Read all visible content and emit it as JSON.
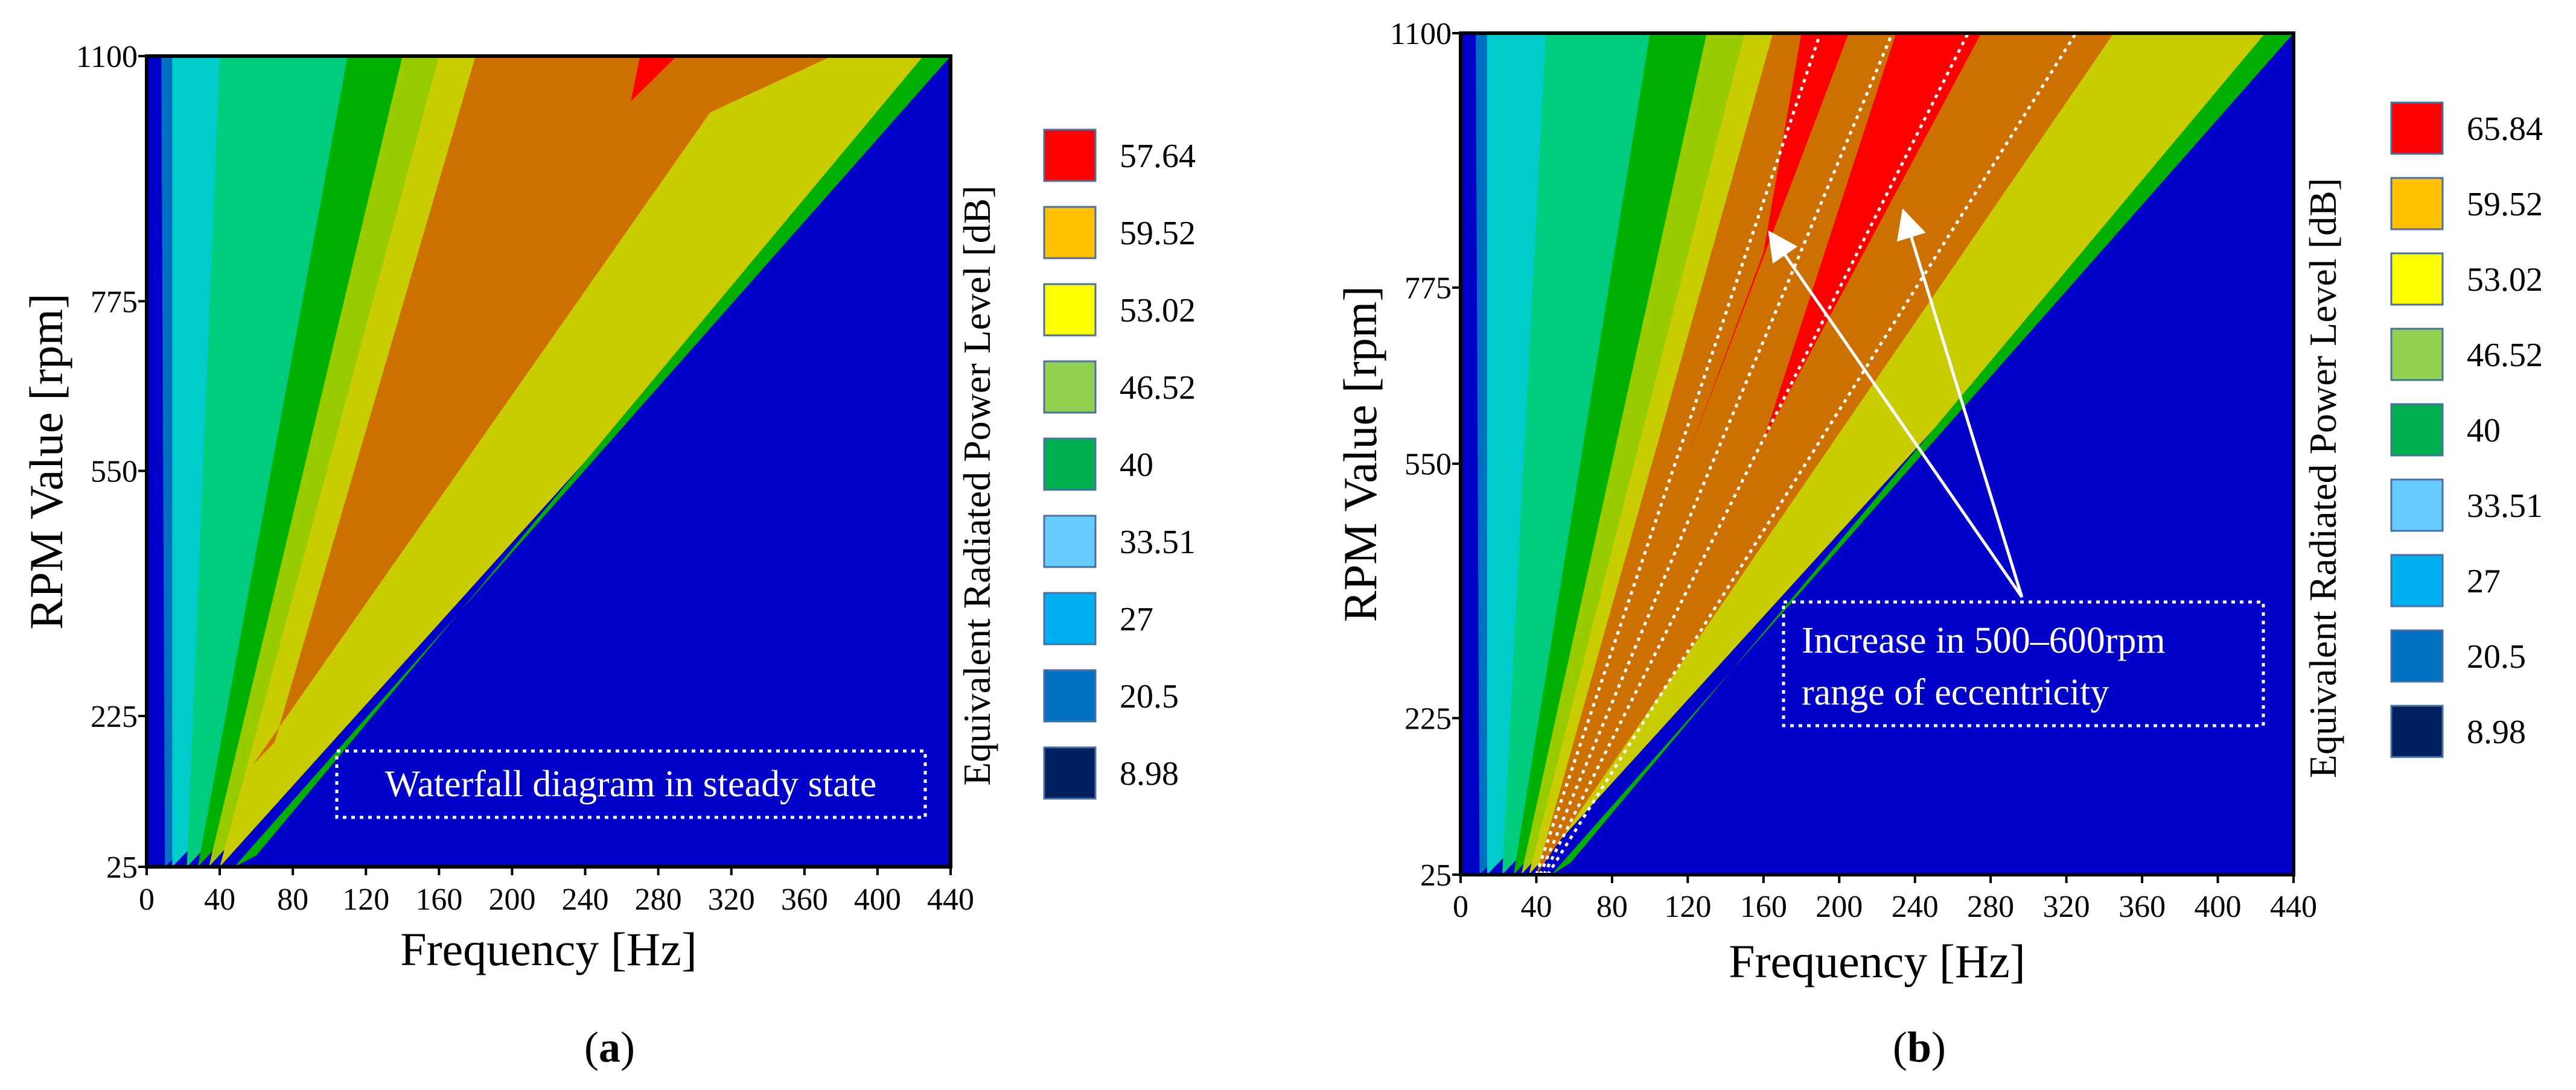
{
  "chart_data": [
    {
      "type": "contour",
      "panel_label": "a",
      "title": "",
      "xlabel": "Frequency [Hz]",
      "ylabel": "RPM Value [rpm]",
      "xlim": [
        0,
        440
      ],
      "ylim": [
        25,
        1100
      ],
      "x_ticks": [
        "0",
        "40",
        "80",
        "120",
        "160",
        "200",
        "240",
        "280",
        "320",
        "360",
        "400",
        "440"
      ],
      "y_ticks": [
        "25",
        "225",
        "550",
        "775",
        "1100"
      ],
      "colorbar_label": "Equivalent Radiated Power Level [dB]",
      "legend": [
        {
          "label": "57.64",
          "color": "#ff0000"
        },
        {
          "label": "59.52",
          "color": "#ffc000"
        },
        {
          "label": "53.02",
          "color": "#ffff00"
        },
        {
          "label": "46.52",
          "color": "#92d050"
        },
        {
          "label": "40",
          "color": "#00b050"
        },
        {
          "label": "33.51",
          "color": "#66ccff"
        },
        {
          "label": "27",
          "color": "#00b0f0"
        },
        {
          "label": "20.5",
          "color": "#0070c0"
        },
        {
          "label": "8.98",
          "color": "#002060"
        }
      ],
      "annotation": "Waterfall diagram in steady state"
    },
    {
      "type": "contour",
      "panel_label": "b",
      "title": "",
      "xlabel": "Frequency [Hz]",
      "ylabel": "RPM Value [rpm]",
      "xlim": [
        0,
        440
      ],
      "ylim": [
        25,
        1100
      ],
      "x_ticks": [
        "0",
        "40",
        "80",
        "120",
        "160",
        "200",
        "240",
        "280",
        "320",
        "360",
        "400",
        "440"
      ],
      "y_ticks": [
        "25",
        "225",
        "550",
        "775",
        "1100"
      ],
      "colorbar_label": "Equivalent Radiated Power Level [dB]",
      "legend": [
        {
          "label": "65.84",
          "color": "#ff0000"
        },
        {
          "label": "59.52",
          "color": "#ffc000"
        },
        {
          "label": "53.02",
          "color": "#ffff00"
        },
        {
          "label": "46.52",
          "color": "#92d050"
        },
        {
          "label": "40",
          "color": "#00b050"
        },
        {
          "label": "33.51",
          "color": "#66ccff"
        },
        {
          "label": "27",
          "color": "#00b0f0"
        },
        {
          "label": "20.5",
          "color": "#0070c0"
        },
        {
          "label": "8.98",
          "color": "#002060"
        }
      ],
      "annotation_lines": [
        "Increase in 500–600rpm",
        "range of eccentricity"
      ]
    }
  ],
  "field_colors": {
    "background": "#0000c8",
    "blue": "#0070c0",
    "cyan": "#00cccc",
    "teal": "#00cc80",
    "green": "#00b000",
    "lightgreen": "#99cc00",
    "yellowgreen": "#c8cc00",
    "orange": "#cc7000",
    "red": "#ff0000"
  }
}
